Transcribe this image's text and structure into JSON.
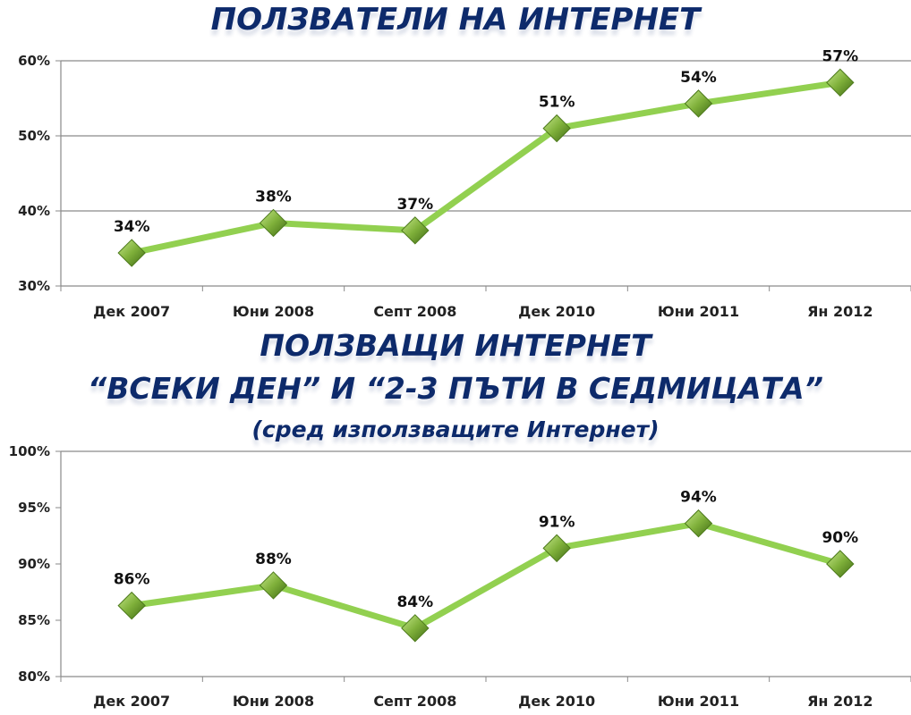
{
  "chart_data": [
    {
      "type": "line",
      "title": "ПОЛЗВАТЕЛИ НА ИНТЕРНЕТ",
      "categories": [
        "Дек 2007",
        "Юни 2008",
        "Септ 2008",
        "Дек 2010",
        "Юни 2011",
        "Ян 2012"
      ],
      "values": [
        34.4,
        38.4,
        37.4,
        51.0,
        54.3,
        57.1
      ],
      "data_labels": [
        "34%",
        "38%",
        "37%",
        "51%",
        "54%",
        "57%"
      ],
      "ylim": [
        30,
        60
      ],
      "yticks": [
        30,
        40,
        50,
        60
      ],
      "ytick_labels": [
        "30%",
        "40%",
        "50%",
        "60%"
      ],
      "grid": true,
      "color": "#92d050",
      "marker_color": "#6a9a2a"
    },
    {
      "type": "line",
      "title_lines": [
        "ПОЛЗВАЩИ ИНТЕРНЕТ",
        "“ВСЕКИ ДЕН” И “2-3 ПЪТИ В СЕДМИЦАТА”"
      ],
      "subtitle": "(сред използващите Интернет)",
      "categories": [
        "Дек 2007",
        "Юни 2008",
        "Септ 2008",
        "Дек 2010",
        "Юни 2011",
        "Ян 2012"
      ],
      "values": [
        86.3,
        88.1,
        84.3,
        91.4,
        93.6,
        90.0
      ],
      "data_labels": [
        "86%",
        "88%",
        "84%",
        "91%",
        "94%",
        "90%"
      ],
      "ylim": [
        80,
        100
      ],
      "yticks": [
        80,
        85,
        90,
        95,
        100
      ],
      "ytick_labels": [
        "80%",
        "85%",
        "90%",
        "95%",
        "100%"
      ],
      "grid": false,
      "color": "#92d050",
      "marker_color": "#6a9a2a"
    }
  ]
}
